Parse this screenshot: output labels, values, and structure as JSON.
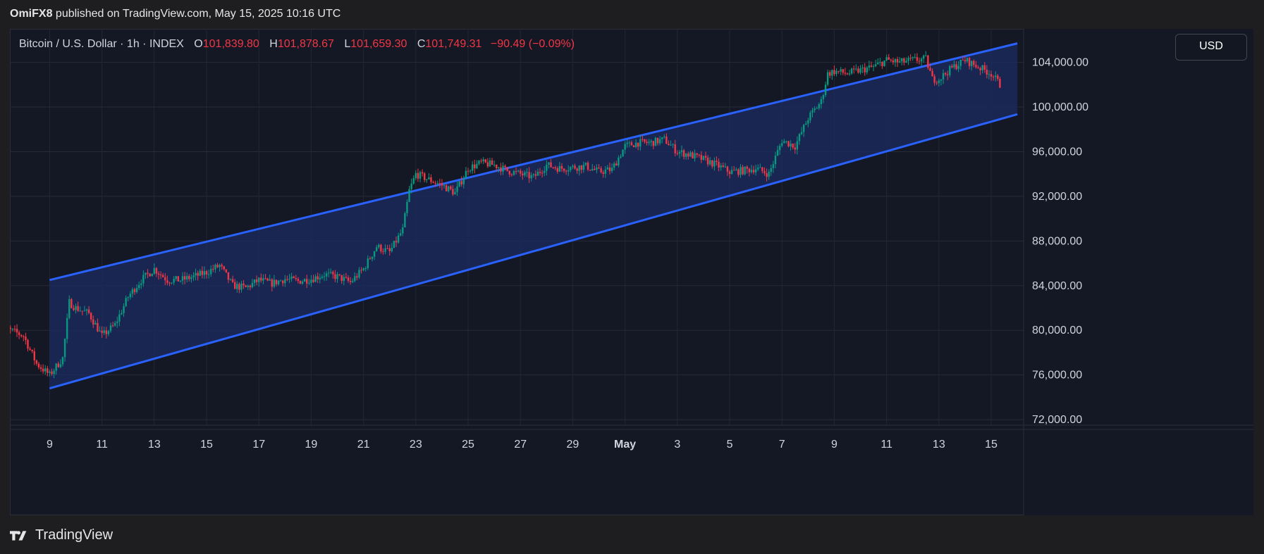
{
  "header": {
    "author": "OmiFX8",
    "text": "published on TradingView.com, May 15, 2025 10:16 UTC"
  },
  "legend": {
    "symbol": "Bitcoin / U.S. Dollar · 1h · INDEX",
    "open_label": "O",
    "open": "101,839.80",
    "high_label": "H",
    "high": "101,878.67",
    "low_label": "L",
    "low": "101,659.30",
    "close_label": "C",
    "close": "101,749.31",
    "change": "−90.49 (−0.09%)"
  },
  "currency_button": "USD",
  "footer": {
    "brand": "TradingView"
  },
  "colors": {
    "up": "#089981",
    "down": "#f23645",
    "channel": "#2962ff",
    "channel_fill": "#1c2b5e",
    "background": "#141824"
  },
  "chart_data": {
    "type": "candlestick",
    "symbol": "BTCUSD",
    "interval": "1h",
    "y_axis": {
      "range": [
        71500,
        107000
      ],
      "ticks": [
        "72,000.00",
        "76,000.00",
        "80,000.00",
        "84,000.00",
        "88,000.00",
        "92,000.00",
        "96,000.00",
        "100,000.00",
        "104,000.00"
      ],
      "tick_values": [
        72000,
        76000,
        80000,
        84000,
        88000,
        92000,
        96000,
        100000,
        104000
      ]
    },
    "x_axis": {
      "tick_labels": [
        "9",
        "11",
        "13",
        "15",
        "17",
        "19",
        "21",
        "23",
        "25",
        "27",
        "29",
        "May",
        "3",
        "5",
        "7",
        "9",
        "11",
        "13",
        "15"
      ]
    },
    "grid": true,
    "price_path": [
      [
        "2025-04-07",
        80500
      ],
      [
        "2025-04-08",
        79500
      ],
      [
        "2025-04-08 12:00",
        77000
      ],
      [
        "2025-04-09",
        76000
      ],
      [
        "2025-04-09 12:00",
        77500
      ],
      [
        "2025-04-09 18:00",
        82500
      ],
      [
        "2025-04-10",
        82000
      ],
      [
        "2025-04-10 12:00",
        81500
      ],
      [
        "2025-04-11",
        79500
      ],
      [
        "2025-04-11 12:00",
        80500
      ],
      [
        "2025-04-12",
        83000
      ],
      [
        "2025-04-12 12:00",
        84500
      ],
      [
        "2025-04-13",
        85500
      ],
      [
        "2025-04-13 12:00",
        84500
      ],
      [
        "2025-04-14",
        84500
      ],
      [
        "2025-04-14 12:00",
        84800
      ],
      [
        "2025-04-15",
        85200
      ],
      [
        "2025-04-15 12:00",
        85800
      ],
      [
        "2025-04-16",
        84000
      ],
      [
        "2025-04-16 12:00",
        83800
      ],
      [
        "2025-04-17",
        84500
      ],
      [
        "2025-04-17 12:00",
        84200
      ],
      [
        "2025-04-18",
        84600
      ],
      [
        "2025-04-18 12:00",
        84400
      ],
      [
        "2025-04-19",
        84600
      ],
      [
        "2025-04-19 12:00",
        85000
      ],
      [
        "2025-04-20",
        84800
      ],
      [
        "2025-04-20 12:00",
        84300
      ],
      [
        "2025-04-21",
        85500
      ],
      [
        "2025-04-21 12:00",
        87500
      ],
      [
        "2025-04-22",
        87000
      ],
      [
        "2025-04-22 12:00",
        89000
      ],
      [
        "2025-04-22 18:00",
        92500
      ],
      [
        "2025-04-23",
        94000
      ],
      [
        "2025-04-23 12:00",
        93500
      ],
      [
        "2025-04-24",
        93000
      ],
      [
        "2025-04-24 12:00",
        92300
      ],
      [
        "2025-04-25",
        94500
      ],
      [
        "2025-04-25 12:00",
        95000
      ],
      [
        "2025-04-26",
        94800
      ],
      [
        "2025-04-26 12:00",
        94300
      ],
      [
        "2025-04-27",
        94000
      ],
      [
        "2025-04-27 12:00",
        93700
      ],
      [
        "2025-04-28",
        94800
      ],
      [
        "2025-04-28 12:00",
        94500
      ],
      [
        "2025-04-29",
        94600
      ],
      [
        "2025-04-29 12:00",
        94700
      ],
      [
        "2025-04-30",
        94200
      ],
      [
        "2025-04-30 12:00",
        94400
      ],
      [
        "2025-05-01",
        96500
      ],
      [
        "2025-05-01 12:00",
        96800
      ],
      [
        "2025-05-02",
        96800
      ],
      [
        "2025-05-02 12:00",
        97100
      ],
      [
        "2025-05-03",
        96000
      ],
      [
        "2025-05-03 12:00",
        95700
      ],
      [
        "2025-05-04",
        95300
      ],
      [
        "2025-05-04 12:00",
        94800
      ],
      [
        "2025-05-05",
        94200
      ],
      [
        "2025-05-05 12:00",
        94300
      ],
      [
        "2025-05-06",
        94500
      ],
      [
        "2025-05-06 12:00",
        94000
      ],
      [
        "2025-05-07",
        97000
      ],
      [
        "2025-05-07 12:00",
        96500
      ],
      [
        "2025-05-08",
        99000
      ],
      [
        "2025-05-08 12:00",
        100500
      ],
      [
        "2025-05-08 18:00",
        103000
      ],
      [
        "2025-05-09",
        103200
      ],
      [
        "2025-05-09 12:00",
        103000
      ],
      [
        "2025-05-10",
        103300
      ],
      [
        "2025-05-10 12:00",
        103600
      ],
      [
        "2025-05-11",
        104200
      ],
      [
        "2025-05-11 12:00",
        104000
      ],
      [
        "2025-05-12",
        104200
      ],
      [
        "2025-05-12 12:00",
        104300
      ],
      [
        "2025-05-12 18:00",
        102500
      ],
      [
        "2025-05-13",
        102500
      ],
      [
        "2025-05-13 12:00",
        103500
      ],
      [
        "2025-05-14",
        104200
      ],
      [
        "2025-05-14 12:00",
        103600
      ],
      [
        "2025-05-15",
        103000
      ],
      [
        "2025-05-15 10:00",
        101750
      ]
    ],
    "channel": {
      "upper": [
        [
          "2025-04-09",
          84500
        ],
        [
          "2025-05-16",
          105700
        ]
      ],
      "lower": [
        [
          "2025-04-09",
          74800
        ],
        [
          "2025-05-16",
          99350
        ]
      ]
    }
  }
}
